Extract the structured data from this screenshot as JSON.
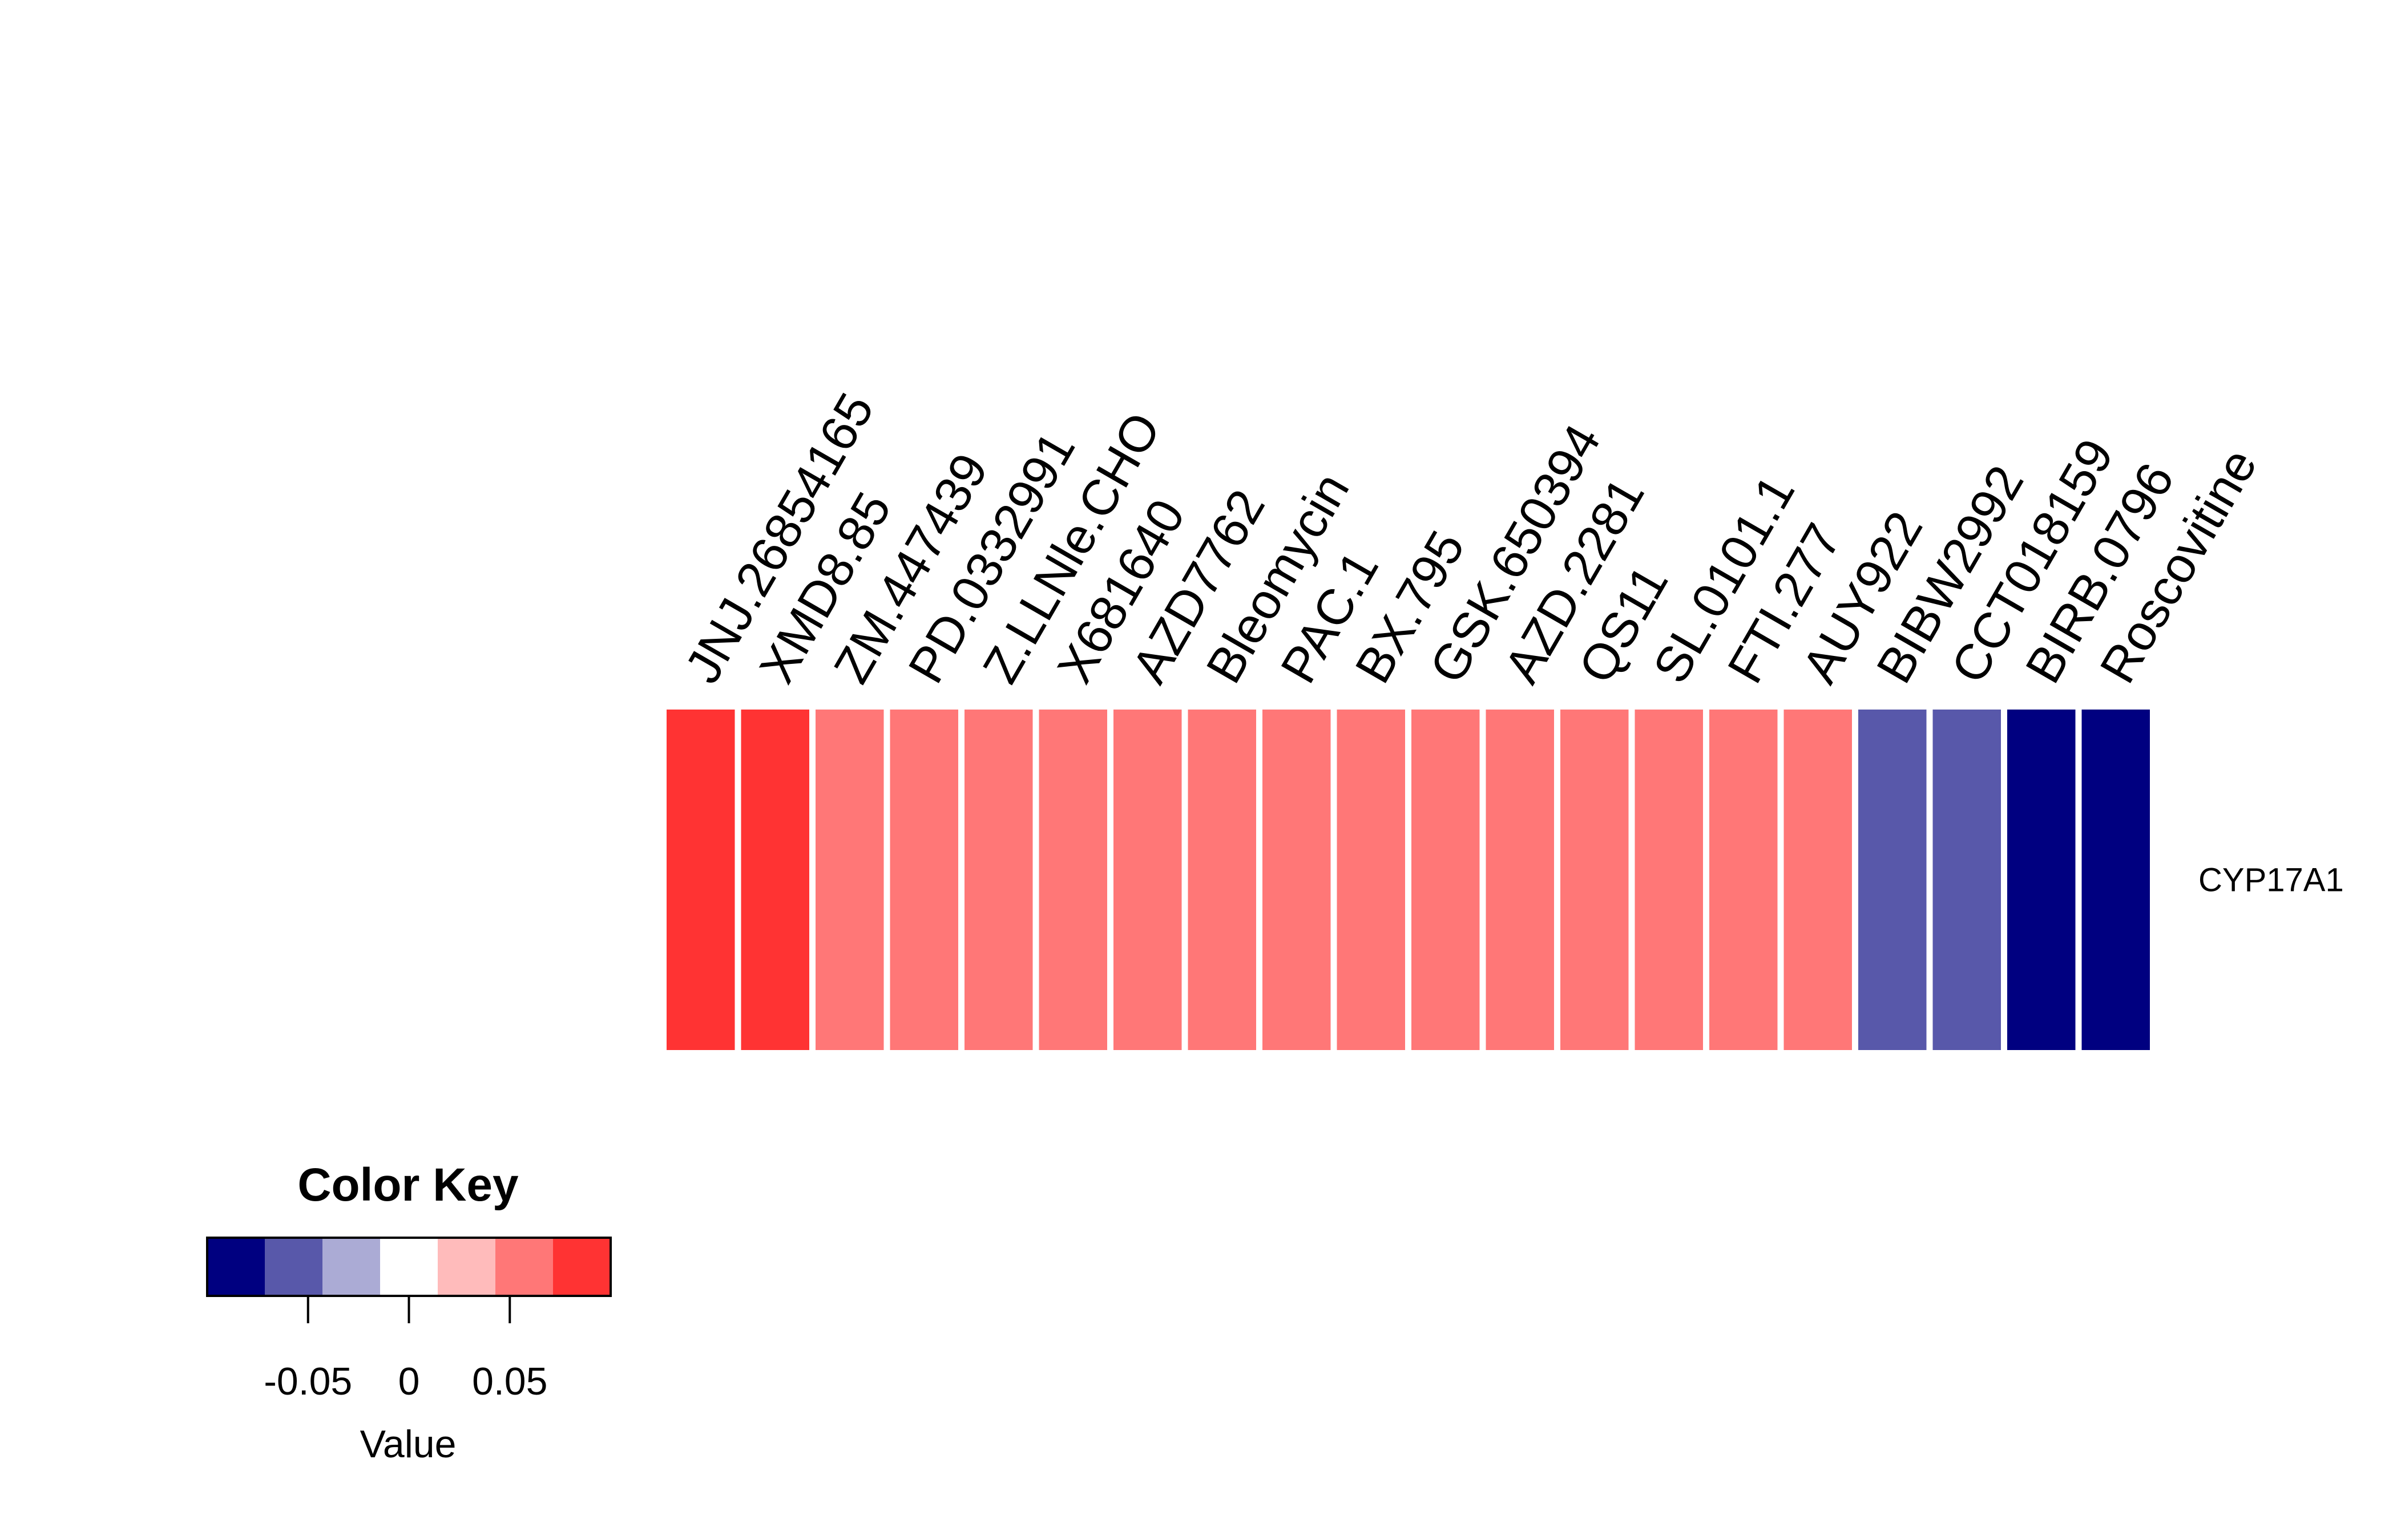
{
  "chart_data": {
    "type": "heatmap",
    "columns": [
      "JNJ.26854165",
      "XMD8.85",
      "ZM.447439",
      "PD.0332991",
      "Z.LLNle.CHO",
      "X681640",
      "AZD7762",
      "Bleomycin",
      "PAC.1",
      "BX.795",
      "GSK.650394",
      "AZD.2281",
      "QS11",
      "SL.0101.1",
      "FTI.277",
      "AUY922",
      "BIBW2992",
      "CCT018159",
      "BIRB.0796",
      "Roscovitine"
    ],
    "rows": [
      "CYP17A1"
    ],
    "values": [
      [
        0.09,
        0.09,
        0.06,
        0.06,
        0.06,
        0.06,
        0.06,
        0.06,
        0.06,
        0.06,
        0.06,
        0.06,
        0.06,
        0.06,
        0.06,
        0.06,
        -0.06,
        -0.06,
        -0.09,
        -0.09
      ]
    ],
    "color_scale": {
      "breaks": [
        -0.1,
        -0.07,
        -0.04,
        -0.015,
        0.015,
        0.04,
        0.07,
        0.1
      ],
      "colors": [
        "#000080",
        "#5858AA",
        "#ABABD5",
        "#FFFFFF",
        "#FFBBBB",
        "#FF7777",
        "#FF3333"
      ]
    },
    "legend": {
      "title": "Color Key",
      "xlabel": "Value",
      "ticks": [
        {
          "value": -0.05,
          "label": "-0.05"
        },
        {
          "value": 0,
          "label": "0"
        },
        {
          "value": 0.05,
          "label": "0.05"
        }
      ],
      "placement": "bottom-left"
    }
  }
}
